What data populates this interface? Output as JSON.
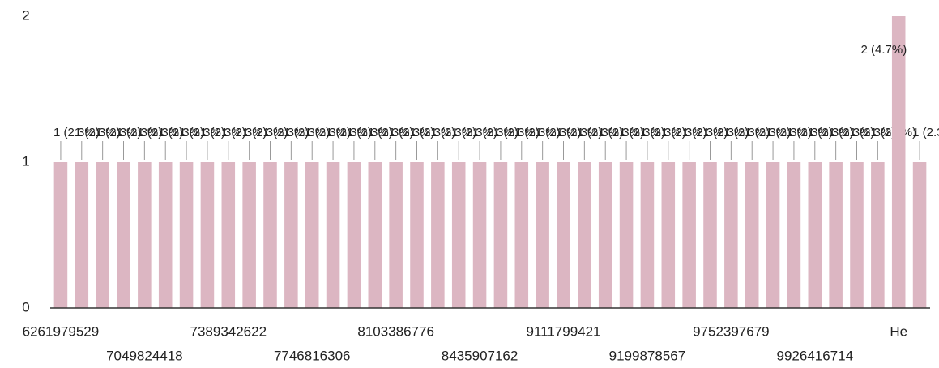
{
  "chart_data": {
    "type": "bar",
    "categories": [
      "6261979529",
      null,
      null,
      null,
      "7049824418",
      null,
      null,
      null,
      "7389342622",
      null,
      null,
      null,
      "7746816306",
      null,
      null,
      null,
      "8103386776",
      null,
      null,
      null,
      "8435907162",
      null,
      null,
      null,
      "9111799421",
      null,
      null,
      null,
      "9199878567",
      null,
      null,
      null,
      "9752397679",
      null,
      null,
      null,
      "9926416714",
      null,
      null,
      null,
      "He",
      null
    ],
    "values": [
      1,
      1,
      1,
      1,
      1,
      1,
      1,
      1,
      1,
      1,
      1,
      1,
      1,
      1,
      1,
      1,
      1,
      1,
      1,
      1,
      1,
      1,
      1,
      1,
      1,
      1,
      1,
      1,
      1,
      1,
      1,
      1,
      1,
      1,
      1,
      1,
      1,
      1,
      1,
      1,
      2,
      1
    ],
    "value_labels": [
      "1 (2.3%)",
      "1 (2.3%)",
      "1 (2.3%)",
      "1 (2.3%)",
      "1 (2.3%)",
      "1 (2.3%)",
      "1 (2.3%)",
      "1 (2.3%)",
      "1 (2.3%)",
      "1 (2.3%)",
      "1 (2.3%)",
      "1 (2.3%)",
      "1 (2.3%)",
      "1 (2.3%)",
      "1 (2.3%)",
      "1 (2.3%)",
      "1 (2.3%)",
      "1 (2.3%)",
      "1 (2.3%)",
      "1 (2.3%)",
      "1 (2.3%)",
      "1 (2.3%)",
      "1 (2.3%)",
      "1 (2.3%)",
      "1 (2.3%)",
      "1 (2.3%)",
      "1 (2.3%)",
      "1 (2.3%)",
      "1 (2.3%)",
      "1 (2.3%)",
      "1 (2.3%)",
      "1 (2.3%)",
      "1 (2.3%)",
      "1 (2.3%)",
      "1 (2.3%)",
      "1 (2.3%)",
      "1 (2.3%)",
      "1 (2.3%)",
      "1 (2.3%)",
      "1 (2.3%)",
      "2 (4.7%)",
      "1 (2.3%)"
    ],
    "color": "#dcb6c2",
    "ylim": [
      0,
      2
    ],
    "yticks": [
      0,
      1,
      2
    ],
    "grid": false
  }
}
